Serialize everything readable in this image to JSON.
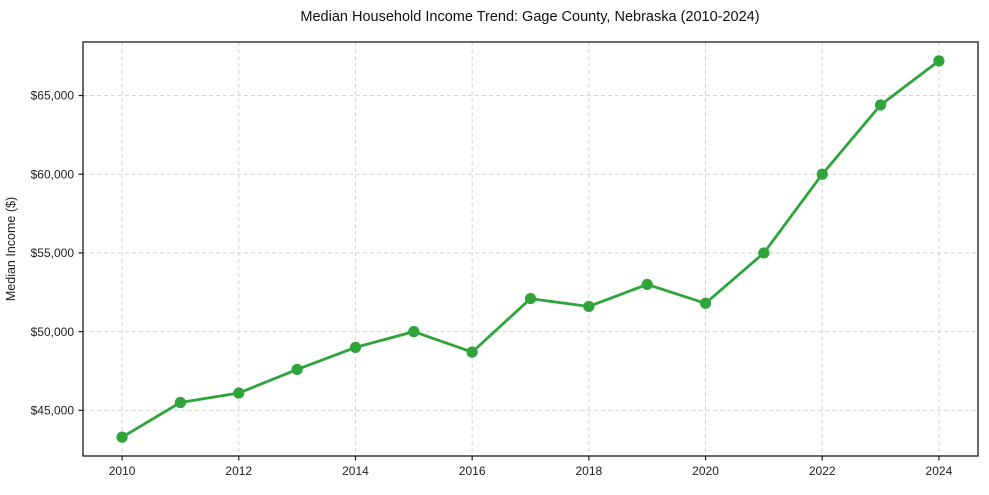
{
  "chart_data": {
    "type": "line",
    "title": "Median Household Income Trend: Gage County, Nebraska (2010-2024)",
    "xlabel": "",
    "ylabel": "Median Income ($)",
    "series_name": "Median Household Income",
    "x": [
      2010,
      2011,
      2012,
      2013,
      2014,
      2015,
      2016,
      2017,
      2018,
      2019,
      2020,
      2021,
      2022,
      2023,
      2024
    ],
    "values": [
      43300,
      45500,
      46100,
      47600,
      49000,
      50000,
      48700,
      52100,
      51600,
      53000,
      51800,
      55000,
      60000,
      64400,
      67200
    ],
    "xticks": [
      2010,
      2012,
      2014,
      2016,
      2018,
      2020,
      2022,
      2024
    ],
    "yticks": [
      45000,
      50000,
      55000,
      60000,
      65000
    ],
    "ytick_labels": [
      "$45,000",
      "$50,000",
      "$55,000",
      "$60,000",
      "$65,000"
    ],
    "xlim": [
      2009.33,
      2024.67
    ],
    "ylim": [
      42100,
      68400
    ],
    "grid": true,
    "grid_style": "dashed",
    "legend_position": "none",
    "marker": "circle",
    "colors": {
      "line": "#2ea43a",
      "marker": "#2ea43a",
      "grid": "#cfcfcf",
      "axis": "#1a1a1a",
      "text": "#1f1f1f",
      "background": "#ffffff"
    }
  }
}
